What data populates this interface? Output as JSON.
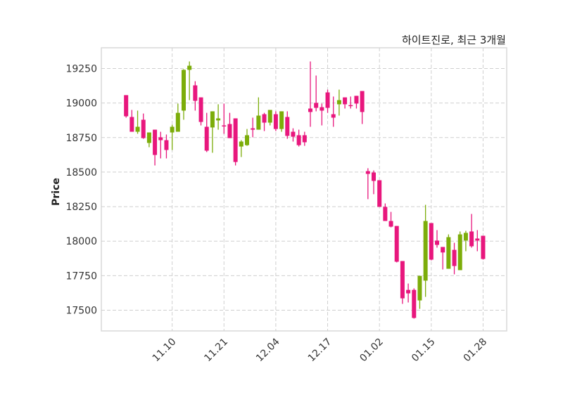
{
  "chart_data": {
    "type": "candlestick",
    "title": "하이트진로, 최근 3개월",
    "xlabel": "",
    "ylabel": "Price",
    "ylim": [
      17350,
      19400
    ],
    "xlim": [
      -4.3,
      66.1
    ],
    "grid": true,
    "up_color": "#7cad0a",
    "down_color": "#e8177d",
    "yticks": [
      17500,
      17750,
      18000,
      18250,
      18500,
      18750,
      19000,
      19250
    ],
    "xticks": [
      {
        "index": 8,
        "label": "11.10"
      },
      {
        "index": 17,
        "label": "11.21"
      },
      {
        "index": 26,
        "label": "12.04"
      },
      {
        "index": 35,
        "label": "12.17"
      },
      {
        "index": 44,
        "label": "01.02"
      },
      {
        "index": 53,
        "label": "01.15"
      },
      {
        "index": 62,
        "label": "01.28"
      }
    ],
    "ohlc": [
      [
        19057,
        19057,
        18894,
        18904
      ],
      [
        18899,
        18950,
        18792,
        18792
      ],
      [
        18792,
        18945,
        18777,
        18828
      ],
      [
        18879,
        18924,
        18741,
        18746
      ],
      [
        18711,
        18787,
        18680,
        18787
      ],
      [
        18807,
        18807,
        18548,
        18624
      ],
      [
        18752,
        18792,
        18599,
        18731
      ],
      [
        18731,
        18772,
        18599,
        18660
      ],
      [
        18787,
        18843,
        18660,
        18828
      ],
      [
        18792,
        18996,
        18792,
        18929
      ],
      [
        18945,
        19245,
        18879,
        19240
      ],
      [
        19240,
        19301,
        19021,
        19270
      ],
      [
        19128,
        19158,
        18945,
        19016
      ],
      [
        19041,
        19041,
        18838,
        18863
      ],
      [
        18828,
        18929,
        18645,
        18655
      ],
      [
        18823,
        18940,
        18640,
        18940
      ],
      [
        18874,
        18991,
        18807,
        18889
      ],
      [
        18838,
        18996,
        18777,
        18836
      ],
      [
        18848,
        18929,
        18746,
        18746
      ],
      [
        18889,
        18889,
        18548,
        18573
      ],
      [
        18685,
        18731,
        18609,
        18721
      ],
      [
        18695,
        18812,
        18690,
        18767
      ],
      [
        18817,
        18894,
        18752,
        18807
      ],
      [
        18807,
        19041,
        18807,
        18909
      ],
      [
        18919,
        18929,
        18797,
        18858
      ],
      [
        18858,
        18950,
        18838,
        18950
      ],
      [
        18919,
        18940,
        18797,
        18812
      ],
      [
        18812,
        18940,
        18792,
        18940
      ],
      [
        18899,
        18940,
        18741,
        18762
      ],
      [
        18792,
        18817,
        18721,
        18756
      ],
      [
        18767,
        18807,
        18685,
        18695
      ],
      [
        18767,
        18792,
        18690,
        18716
      ],
      [
        18960,
        19301,
        18828,
        18935
      ],
      [
        19001,
        19199,
        18940,
        18965
      ],
      [
        18970,
        18996,
        18838,
        18945
      ],
      [
        19077,
        19097,
        18929,
        18965
      ],
      [
        18919,
        19047,
        18828,
        18894
      ],
      [
        18991,
        19097,
        18909,
        19021
      ],
      [
        19041,
        19041,
        18960,
        18991
      ],
      [
        18985,
        19047,
        18960,
        18980
      ],
      [
        19052,
        19052,
        18960,
        18996
      ],
      [
        19087,
        19087,
        18848,
        18935
      ],
      [
        18507,
        18528,
        18304,
        18487
      ],
      [
        18497,
        18512,
        18340,
        18436
      ],
      [
        18441,
        18441,
        18248,
        18248
      ],
      [
        18248,
        18273,
        18146,
        18146
      ],
      [
        18146,
        18212,
        18100,
        18105
      ],
      [
        18110,
        18110,
        17846,
        17851
      ],
      [
        17856,
        17856,
        17546,
        17586
      ],
      [
        17647,
        17693,
        17556,
        17622
      ],
      [
        17647,
        17658,
        17439,
        17444
      ],
      [
        17571,
        17749,
        17510,
        17749
      ],
      [
        17714,
        18263,
        17597,
        18146
      ],
      [
        18131,
        18131,
        17861,
        17866
      ],
      [
        18004,
        18080,
        17953,
        17973
      ],
      [
        17958,
        17958,
        17795,
        17918
      ],
      [
        17800,
        18049,
        17800,
        18029
      ],
      [
        17937,
        17988,
        17760,
        17820
      ],
      [
        17790,
        18070,
        17790,
        18049
      ],
      [
        18004,
        18075,
        17927,
        18060
      ],
      [
        18070,
        18197,
        17953,
        17963
      ],
      [
        18019,
        18080,
        17927,
        18004
      ],
      [
        18039,
        18039,
        17866,
        17871
      ]
    ]
  }
}
